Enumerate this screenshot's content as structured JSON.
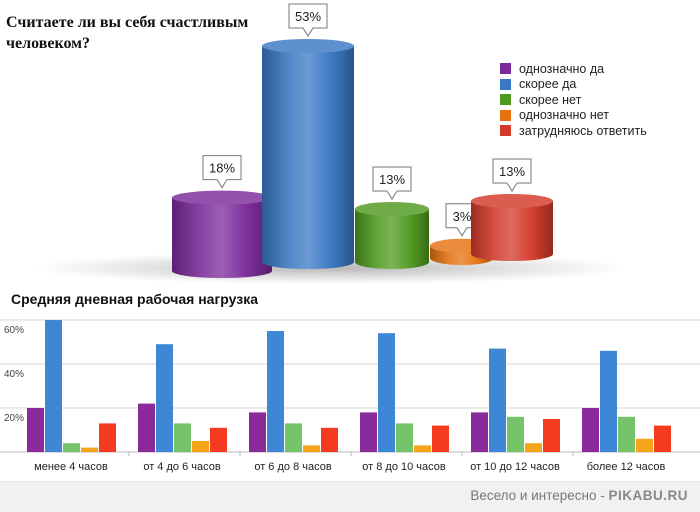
{
  "chart_data": [
    {
      "type": "bar",
      "title": "Считаете ли вы себя счастливым\n человеком?",
      "categories": [
        "однозначно да",
        "скорее да",
        "скорее нет",
        "однозначно нет",
        "затрудняюсь ответить"
      ],
      "values": [
        18,
        53,
        13,
        3,
        13
      ],
      "data_labels": [
        "18%",
        "53%",
        "13%",
        "3%",
        "13%"
      ],
      "colors": [
        "#7b2a9a",
        "#3a78c4",
        "#4f9a1e",
        "#e4720f",
        "#d23a2a"
      ],
      "legend": "right"
    },
    {
      "type": "bar",
      "title": "Средняя дневная рабочая нагрузка",
      "categories": [
        "менее 4 часов",
        "от 4 до 6 часов",
        "от 6 до 8 часов",
        "от 8 до 10 часов",
        "от 10 до 12 часов",
        "более 12 часов"
      ],
      "series": [
        {
          "values": [
            20,
            22,
            18,
            18,
            18,
            20
          ]
        },
        {
          "values": [
            60,
            49,
            55,
            54,
            47,
            46
          ]
        },
        {
          "values": [
            4,
            13,
            13,
            13,
            16,
            16
          ]
        },
        {
          "values": [
            2,
            5,
            3,
            3,
            4,
            6
          ]
        },
        {
          "values": [
            13,
            11,
            11,
            12,
            15,
            12
          ]
        }
      ],
      "colors": [
        "#8b2a9b",
        "#3e86d6",
        "#75c46a",
        "#f6a51a",
        "#f43b1f"
      ],
      "yticks": [
        "60%",
        "40%",
        "20%"
      ],
      "ylim": [
        0,
        60
      ],
      "grid": true
    }
  ],
  "footer": {
    "text": "Весело и интересно - ",
    "brand": "PIKABU.RU"
  }
}
